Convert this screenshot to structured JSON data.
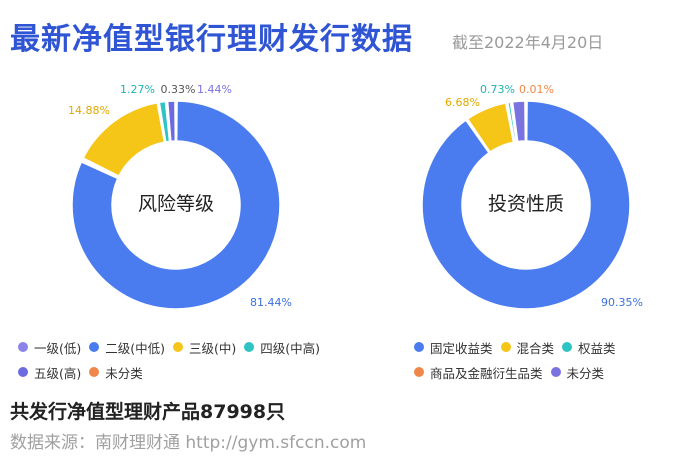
{
  "title": "最新净值型银行理财发行数据",
  "date_note": "截至2022年4月20日",
  "total_text": "共发行净值型理财产品87998只",
  "source_text": "数据来源：南财理财通 http://gym.sfccn.com",
  "chart_data": [
    {
      "type": "pie",
      "center_label": "风险等级",
      "categories": [
        "一级(低)",
        "二级(中低)",
        "三级(中)",
        "四级(中高)",
        "五级(高)",
        "未分类"
      ],
      "values": [
        0.33,
        81.44,
        14.88,
        1.27,
        1.44,
        0.0
      ],
      "value_labels": [
        "0.33%",
        "81.44%",
        "14.88%",
        "1.27%",
        "1.44%",
        ""
      ],
      "colors": [
        "#8b83e8",
        "#4a7cef",
        "#f5c518",
        "#2ec4c4",
        "#6b6ae0",
        "#f0874a"
      ],
      "label_colors": [
        "#555555",
        "#3c6fe0",
        "#e0a800",
        "#1fb5b5",
        "#7a72de",
        "#f0874a"
      ]
    },
    {
      "type": "pie",
      "center_label": "投资性质",
      "categories": [
        "固定收益类",
        "混合类",
        "权益类",
        "商品及金融衍生品类",
        "未分类"
      ],
      "values": [
        90.35,
        6.68,
        0.73,
        0.01,
        2.23
      ],
      "value_labels": [
        "90.35%",
        "6.68%",
        "0.73%",
        "0.01%",
        ""
      ],
      "colors": [
        "#4a7cef",
        "#f5c518",
        "#2ec4c4",
        "#f0874a",
        "#7a72de"
      ],
      "label_colors": [
        "#3c6fe0",
        "#e0a800",
        "#1fb5b5",
        "#f0874a",
        "#7a72de"
      ]
    }
  ]
}
